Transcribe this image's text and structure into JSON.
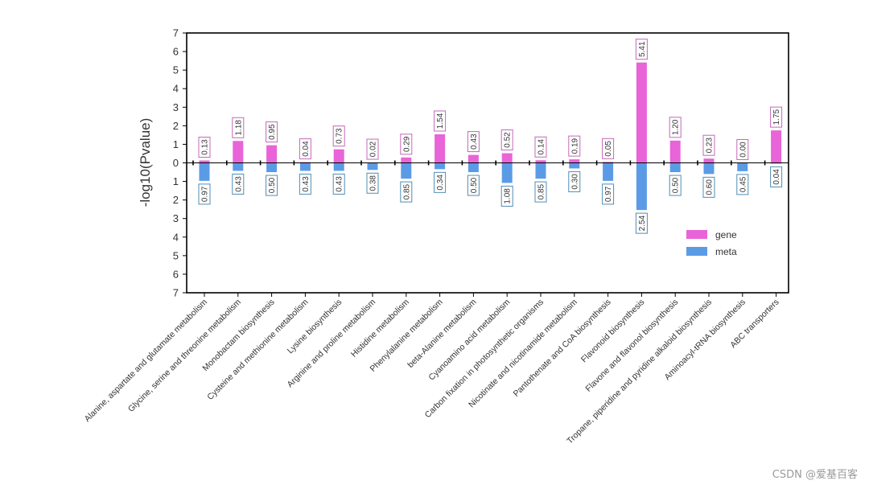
{
  "chart_data": {
    "type": "bar",
    "ylabel": "-log10(Pvalue)",
    "ylim": [
      -7,
      7
    ],
    "ytick_labels": [
      "7",
      "6",
      "5",
      "4",
      "3",
      "2",
      "1",
      "0",
      "1",
      "2",
      "3",
      "4",
      "5",
      "6",
      "7"
    ],
    "categories": [
      "Alanine, aspartate and glutamate metabolism",
      "Glycine, serine and threonine metabolism",
      "Monobactam biosynthesis",
      "Cysteine and methionine metabolism",
      "Lysine biosynthesis",
      "Arginine and proline metabolism",
      "Histidine metabolism",
      "Phenylalanine metabolism",
      "beta-Alanine metabolism",
      "Cyanoamino acid metabolism",
      "Carbon fixation in photosynthetic organisms",
      "Nicotinate and nicotinamide metabolism",
      "Pantothenate and CoA biosynthesis",
      "Flavonoid biosynthesis",
      "Flavone and flavonol biosynthesis",
      "Tropane, piperidine and pyridine alkaloid biosynthesis",
      "Aminoacyl-tRNA biosynthesis",
      "ABC transporters"
    ],
    "series": [
      {
        "name": "gene",
        "color": "#e864d8",
        "direction": "up",
        "values": [
          0.13,
          1.18,
          0.95,
          0.04,
          0.73,
          0.02,
          0.29,
          1.54,
          0.43,
          0.52,
          0.14,
          0.19,
          0.05,
          5.41,
          1.2,
          0.23,
          0.0,
          1.75
        ],
        "labels": [
          "0.13",
          "1.18",
          "0.95",
          "0.04",
          "0.73",
          "0.02",
          "0.29",
          "1.54",
          "0.43",
          "0.52",
          "0.14",
          "0.19",
          "0.05",
          "5.41",
          "1.20",
          "0.23",
          "0.00",
          "1.75"
        ]
      },
      {
        "name": "meta",
        "color": "#5b9be6",
        "direction": "down",
        "values": [
          0.97,
          0.43,
          0.5,
          0.43,
          0.43,
          0.38,
          0.85,
          0.34,
          0.5,
          1.08,
          0.85,
          0.3,
          0.97,
          2.54,
          0.5,
          0.6,
          0.45,
          0.04
        ],
        "labels": [
          "0.97",
          "0.43",
          "0.50",
          "0.43",
          "0.43",
          "0.38",
          "0.85",
          "0.34",
          "0.50",
          "1.08",
          "0.85",
          "0.30",
          "0.97",
          "2.54",
          "0.50",
          "0.60",
          "0.45",
          "0.04"
        ]
      }
    ],
    "legend_position": "lower-right",
    "grid": false
  },
  "watermark": "CSDN @爱基百客"
}
